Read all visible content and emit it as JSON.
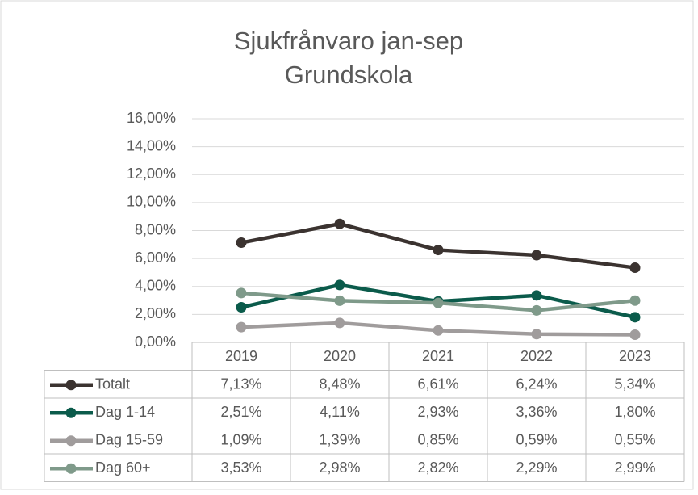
{
  "chart_data": {
    "type": "line",
    "title": [
      "Sjukfrånvaro jan-sep",
      "Grundskola"
    ],
    "categories": [
      "2019",
      "2020",
      "2021",
      "2022",
      "2023"
    ],
    "series": [
      {
        "name": "Totalt",
        "color": "#3b3330",
        "values": [
          7.13,
          8.48,
          6.61,
          6.24,
          5.34
        ],
        "value_labels": [
          "7,13%",
          "8,48%",
          "6,61%",
          "6,24%",
          "5,34%"
        ]
      },
      {
        "name": "Dag 1-14",
        "color": "#0b5b4b",
        "values": [
          2.51,
          4.11,
          2.93,
          3.36,
          1.8
        ],
        "value_labels": [
          "2,51%",
          "4,11%",
          "2,93%",
          "3,36%",
          "1,80%"
        ]
      },
      {
        "name": "Dag 15-59",
        "color": "#a09c9c",
        "values": [
          1.09,
          1.39,
          0.85,
          0.59,
          0.55
        ],
        "value_labels": [
          "1,09%",
          "1,39%",
          "0,85%",
          "0,59%",
          "0,55%"
        ]
      },
      {
        "name": "Dag 60+",
        "color": "#7f9a8a",
        "values": [
          3.53,
          2.98,
          2.82,
          2.29,
          2.99
        ],
        "value_labels": [
          "3,53%",
          "2,98%",
          "2,82%",
          "2,29%",
          "2,99%"
        ]
      }
    ],
    "ylim": [
      0,
      16
    ],
    "yticks": [
      {
        "value": 0,
        "label": "0,00%"
      },
      {
        "value": 2,
        "label": "2,00%"
      },
      {
        "value": 4,
        "label": "4,00%"
      },
      {
        "value": 6,
        "label": "6,00%"
      },
      {
        "value": 8,
        "label": "8,00%"
      },
      {
        "value": 10,
        "label": "10,00%"
      },
      {
        "value": 12,
        "label": "12,00%"
      },
      {
        "value": 14,
        "label": "14,00%"
      },
      {
        "value": 16,
        "label": "16,00%"
      }
    ],
    "grid": true
  }
}
